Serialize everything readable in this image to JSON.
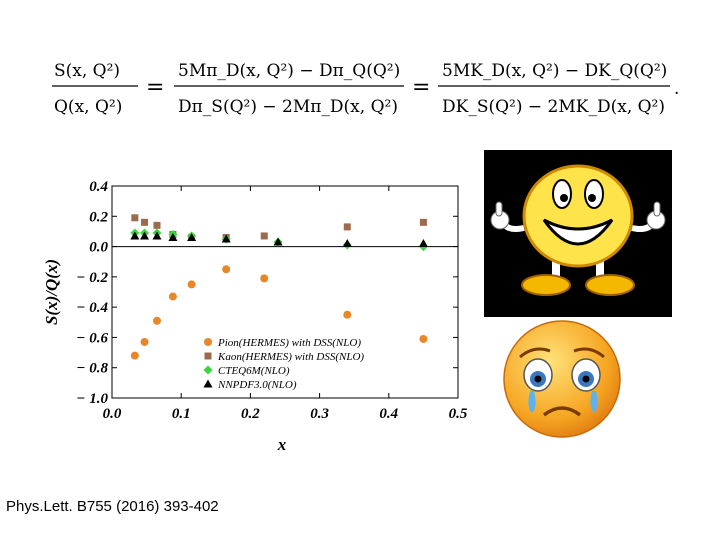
{
  "formula": {
    "lhs_num": "S(x, Q²)",
    "lhs_den": "Q(x, Q²)",
    "mid_num": "5Mπ_D(x, Q²) − Dπ_Q(Q²)",
    "mid_den": "Dπ_S(Q²) − 2Mπ_D(x, Q²)",
    "rhs_num": "5MK_D(x, Q²) − DK_Q(Q²)",
    "rhs_den": "DK_S(Q²) − 2MK_D(x, Q²)"
  },
  "reference": "Phys.Lett. B755 (2016) 393-402",
  "chart_data": {
    "type": "scatter",
    "xlabel": "x",
    "ylabel": "S(x)/Q(x)",
    "xlim": [
      0.0,
      0.5
    ],
    "ylim": [
      -1.0,
      0.4
    ],
    "x_ticks": [
      0.0,
      0.1,
      0.2,
      0.3,
      0.4,
      0.5
    ],
    "y_ticks": [
      0.4,
      0.2,
      0.0,
      -0.2,
      -0.4,
      -0.6,
      -0.8,
      -1.0
    ],
    "x_tick_labels": [
      "0.0",
      "0.1",
      "0.2",
      "0.3",
      "0.4",
      "0.5"
    ],
    "y_tick_labels": [
      "0.4",
      "0.2",
      "0.0",
      "− 0.2",
      "− 0.4",
      "− 0.6",
      "− 0.8",
      "− 1.0"
    ],
    "zero_line": true,
    "grid": false,
    "legend_position": "lower-right",
    "series": [
      {
        "name": "Pion(HERMES) with DSS(NLO)",
        "color": "#e8872a",
        "marker": "circle",
        "x": [
          0.033,
          0.047,
          0.065,
          0.088,
          0.115,
          0.165,
          0.22,
          0.34,
          0.45
        ],
        "y": [
          -0.72,
          -0.63,
          -0.49,
          -0.33,
          -0.25,
          -0.15,
          -0.21,
          -0.45,
          -0.61
        ]
      },
      {
        "name": "Kaon(HERMES) with DSS(NLO)",
        "color": "#9c6b4e",
        "marker": "square",
        "x": [
          0.033,
          0.047,
          0.065,
          0.088,
          0.115,
          0.165,
          0.22,
          0.34,
          0.45
        ],
        "y": [
          0.19,
          0.16,
          0.14,
          0.08,
          0.06,
          0.06,
          0.07,
          0.13,
          0.16
        ]
      },
      {
        "name": "CTEQ6M(NLO)",
        "color": "#3bd63b",
        "marker": "diamond",
        "x": [
          0.033,
          0.047,
          0.065,
          0.088,
          0.115,
          0.165,
          0.24,
          0.34,
          0.45
        ],
        "y": [
          0.09,
          0.09,
          0.09,
          0.08,
          0.07,
          0.05,
          0.03,
          0.01,
          0.0
        ]
      },
      {
        "name": "NNPDF3.0(NLO)",
        "color": "#000000",
        "marker": "triangle",
        "x": [
          0.033,
          0.047,
          0.065,
          0.088,
          0.115,
          0.165,
          0.24,
          0.34,
          0.45
        ],
        "y": [
          0.07,
          0.07,
          0.07,
          0.06,
          0.06,
          0.05,
          0.03,
          0.02,
          0.02
        ]
      }
    ]
  }
}
